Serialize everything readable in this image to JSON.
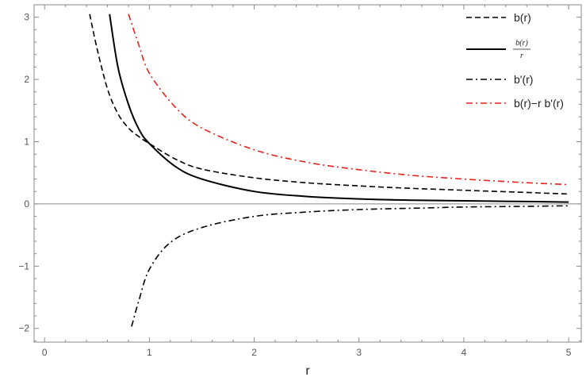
{
  "chart_data": {
    "type": "line",
    "title": "",
    "xlabel": "r",
    "ylabel": "",
    "xlim": [
      -0.1,
      5.12
    ],
    "ylim": [
      -2.22,
      3.2
    ],
    "xticks": [
      "0",
      "1",
      "2",
      "3",
      "4",
      "5"
    ],
    "yticks": [
      "−2",
      "−1",
      "0",
      "1",
      "2",
      "3"
    ],
    "grid": false,
    "legend_position": "top-right",
    "zero_line": true,
    "series": [
      {
        "name": "b(r)",
        "style": "dashed",
        "color": "#000000",
        "x": [
          0.43,
          0.5,
          0.6,
          0.7,
          0.8,
          0.9,
          1.0,
          1.25,
          1.5,
          2.0,
          2.5,
          3.0,
          3.5,
          4.0,
          4.5,
          5.0
        ],
        "y": [
          3.05,
          2.5,
          1.85,
          1.45,
          1.22,
          1.08,
          0.97,
          0.72,
          0.56,
          0.42,
          0.34,
          0.29,
          0.25,
          0.22,
          0.19,
          0.16
        ]
      },
      {
        "name_numerator": "b(r)",
        "name_denominator": "r",
        "style": "solid",
        "color": "#000000",
        "x": [
          0.62,
          0.7,
          0.8,
          0.9,
          1.0,
          1.25,
          1.5,
          2.0,
          2.5,
          3.0,
          3.5,
          4.0,
          4.5,
          5.0
        ],
        "y": [
          3.05,
          2.2,
          1.6,
          1.2,
          0.97,
          0.6,
          0.4,
          0.2,
          0.12,
          0.08,
          0.06,
          0.05,
          0.04,
          0.03
        ]
      },
      {
        "name": "b'(r)",
        "style": "dash-dot",
        "color": "#000000",
        "x": [
          0.83,
          0.9,
          1.0,
          1.2,
          1.5,
          2.0,
          2.5,
          3.0,
          3.5,
          4.0,
          4.5,
          5.0
        ],
        "y": [
          -1.97,
          -1.55,
          -1.05,
          -0.62,
          -0.38,
          -0.2,
          -0.13,
          -0.09,
          -0.07,
          -0.05,
          -0.04,
          -0.03
        ]
      },
      {
        "name": "b(r)−r b'(r)",
        "style": "dash-dot",
        "color": "#e8211d",
        "x": [
          0.8,
          0.9,
          1.0,
          1.25,
          1.5,
          2.0,
          2.5,
          3.0,
          3.5,
          4.0,
          4.5,
          5.0
        ],
        "y": [
          3.05,
          2.55,
          2.1,
          1.55,
          1.22,
          0.87,
          0.67,
          0.55,
          0.46,
          0.4,
          0.35,
          0.31
        ]
      }
    ]
  }
}
